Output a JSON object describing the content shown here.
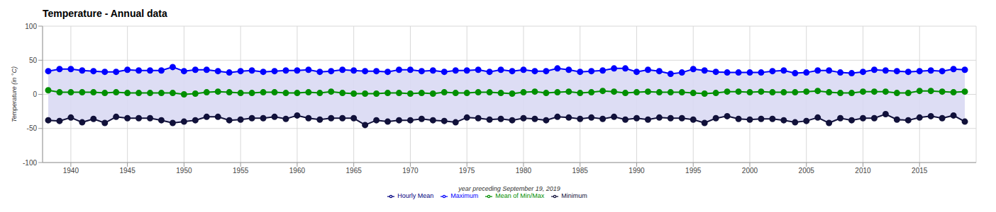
{
  "chart_data": {
    "type": "line",
    "title": "Temperature - Annual data",
    "x_label": "year preceding September 19, 2019",
    "y_label": "Temperature (in °C)",
    "x": [
      1938,
      1939,
      1940,
      1941,
      1942,
      1943,
      1944,
      1945,
      1946,
      1947,
      1948,
      1949,
      1950,
      1951,
      1952,
      1953,
      1954,
      1955,
      1956,
      1957,
      1958,
      1959,
      1960,
      1961,
      1962,
      1963,
      1964,
      1965,
      1966,
      1967,
      1968,
      1969,
      1970,
      1971,
      1972,
      1973,
      1974,
      1975,
      1976,
      1977,
      1978,
      1979,
      1980,
      1981,
      1982,
      1983,
      1984,
      1985,
      1986,
      1987,
      1988,
      1989,
      1990,
      1991,
      1992,
      1993,
      1994,
      1995,
      1996,
      1997,
      1998,
      1999,
      2000,
      2001,
      2002,
      2003,
      2004,
      2005,
      2006,
      2007,
      2008,
      2009,
      2010,
      2011,
      2012,
      2013,
      2014,
      2015,
      2016,
      2017,
      2018,
      2019
    ],
    "series": [
      {
        "name": "Maximum",
        "color": "#0000ff",
        "values": [
          34,
          37,
          37,
          35,
          34,
          33,
          33,
          36,
          35,
          35,
          35,
          40,
          34,
          36,
          36,
          34,
          32,
          34,
          35,
          33,
          34,
          35,
          35,
          36,
          33,
          34,
          36,
          35,
          34,
          34,
          33,
          36,
          36,
          34,
          35,
          33,
          35,
          35,
          36,
          33,
          36,
          34,
          36,
          34,
          34,
          38,
          36,
          33,
          34,
          35,
          38,
          38,
          33,
          36,
          34,
          30,
          32,
          37,
          35,
          33,
          32,
          32,
          32,
          32,
          34,
          35,
          31,
          32,
          35,
          35,
          32,
          31,
          33,
          36,
          35,
          34,
          33,
          34,
          35,
          34,
          37,
          36
        ]
      },
      {
        "name": "Hourly Mean",
        "color": "#000080",
        "values": [
          null,
          null,
          null,
          null,
          null,
          null,
          null,
          null,
          null,
          null,
          null,
          null,
          null,
          null,
          null,
          null,
          null,
          null,
          null,
          null,
          null,
          null,
          null,
          null,
          null,
          null,
          null,
          null,
          null,
          null,
          null,
          null,
          null,
          null,
          null,
          null,
          null,
          null,
          null,
          null,
          null,
          null,
          null,
          null,
          null,
          null,
          null,
          null,
          null,
          null,
          null,
          null,
          null,
          null,
          null,
          null,
          null,
          null,
          null,
          null,
          null,
          null,
          null,
          null,
          null,
          null,
          null,
          null,
          null,
          null,
          null,
          null,
          null,
          null,
          null,
          null,
          null,
          null,
          null,
          null,
          null,
          null
        ]
      },
      {
        "name": "Mean of Min/Max",
        "color": "#008f00",
        "values": [
          6,
          3,
          3,
          3,
          3,
          2,
          3,
          2,
          2,
          2,
          2,
          2,
          0,
          1,
          3,
          4,
          3,
          2,
          2,
          3,
          3,
          2,
          2,
          3,
          2,
          4,
          2,
          1,
          1,
          1,
          2,
          2,
          1,
          2,
          1,
          3,
          2,
          2,
          3,
          3,
          2,
          1,
          3,
          4,
          2,
          3,
          4,
          2,
          3,
          5,
          4,
          2,
          3,
          4,
          3,
          3,
          3,
          2,
          1,
          2,
          4,
          4,
          3,
          4,
          3,
          3,
          3,
          4,
          5,
          3,
          2,
          2,
          4,
          4,
          4,
          2,
          2,
          5,
          5,
          4,
          3,
          4
        ]
      },
      {
        "name": "Minimum",
        "color": "#11113a",
        "values": [
          -38,
          -39,
          -34,
          -41,
          -36,
          -42,
          -33,
          -35,
          -35,
          -35,
          -38,
          -42,
          -40,
          -38,
          -33,
          -33,
          -38,
          -37,
          -35,
          -35,
          -33,
          -36,
          -31,
          -35,
          -37,
          -35,
          -35,
          -35,
          -45,
          -38,
          -40,
          -38,
          -38,
          -36,
          -38,
          -39,
          -41,
          -34,
          -35,
          -37,
          -36,
          -38,
          -35,
          -36,
          -38,
          -33,
          -34,
          -36,
          -34,
          -36,
          -33,
          -37,
          -35,
          -37,
          -34,
          -35,
          -35,
          -37,
          -42,
          -35,
          -32,
          -36,
          -37,
          -36,
          -36,
          -38,
          -41,
          -39,
          -34,
          -42,
          -35,
          -38,
          -35,
          -35,
          -29,
          -37,
          -38,
          -34,
          -32,
          -35,
          -31,
          -40
        ]
      }
    ],
    "xlim": [
      1937.5,
      2020
    ],
    "xticks": [
      1940,
      1945,
      1950,
      1955,
      1960,
      1965,
      1970,
      1975,
      1980,
      1985,
      1990,
      1995,
      2000,
      2005,
      2010,
      2015
    ],
    "ylim": [
      -100,
      100
    ],
    "yticks": [
      -100,
      -50,
      0,
      50,
      100
    ],
    "grid": true,
    "legend": "bottom",
    "marker": "circle",
    "line_style": "solid"
  }
}
